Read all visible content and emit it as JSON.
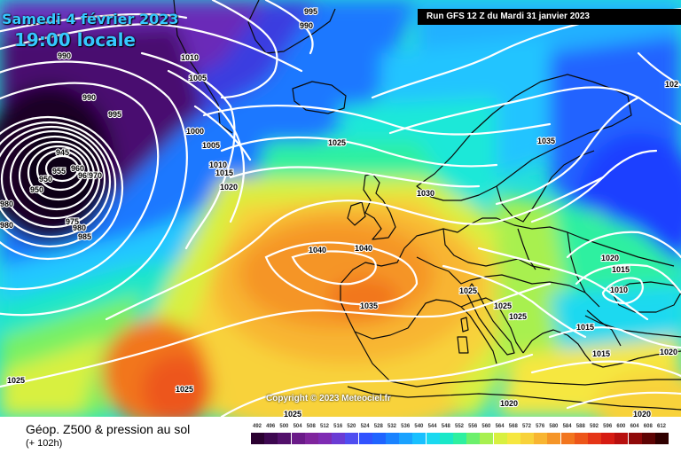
{
  "header": {
    "date": "Samedi 4 février 2023",
    "time": "19:00 locale",
    "run": "Run GFS 12 Z du Mardi 31 janvier 2023"
  },
  "copyright": "Copyright © 2023 Meteociel.fr",
  "footer": {
    "title": "Géop. Z500 & pression au sol",
    "subtitle": "(+ 102h)"
  },
  "isobar_labels": [
    "995",
    "990",
    "990",
    "1010",
    "1005",
    "990",
    "995",
    "1000",
    "1005",
    "1010",
    "1015",
    "1020",
    "1025",
    "1030",
    "1040",
    "1035",
    "1040",
    "1035",
    "1025",
    "1025",
    "1025",
    "1020",
    "1015",
    "1010",
    "1015",
    "1015",
    "1020",
    "1025",
    "1025",
    "1020",
    "1020",
    "102",
    "980",
    "980",
    "945",
    "950",
    "950",
    "955",
    "960",
    "965",
    "970",
    "975",
    "980",
    "985",
    "1025"
  ],
  "legend": {
    "scale_labels": [
      "492",
      "496",
      "500",
      "504",
      "508",
      "512",
      "516",
      "520",
      "524",
      "528",
      "532",
      "536",
      "540",
      "544",
      "548",
      "552",
      "556",
      "560",
      "564",
      "568",
      "572",
      "576",
      "580",
      "584",
      "588",
      "592",
      "596",
      "600",
      "604",
      "608",
      "612"
    ],
    "scale_colors": [
      "#2a0030",
      "#3d0750",
      "#52106b",
      "#6a1a88",
      "#7f249d",
      "#7e2bb3",
      "#6a3bd4",
      "#4f4df0",
      "#3152ff",
      "#1f64ff",
      "#1a83ff",
      "#1aa2ff",
      "#19c0ff",
      "#1ad9f0",
      "#1ae8c8",
      "#2ef0a0",
      "#6cf06c",
      "#a8f050",
      "#d8f040",
      "#f6e740",
      "#f8d23a",
      "#f8b531",
      "#f59528",
      "#f2761f",
      "#ed561a",
      "#e53517",
      "#d61b12",
      "#b70f0e",
      "#8f0909",
      "#5e0404",
      "#300000"
    ],
    "colors": {
      "polar_low": "#0a0212",
      "high_core": "#ef8c2a",
      "land_border": "#0b0b0b"
    }
  }
}
